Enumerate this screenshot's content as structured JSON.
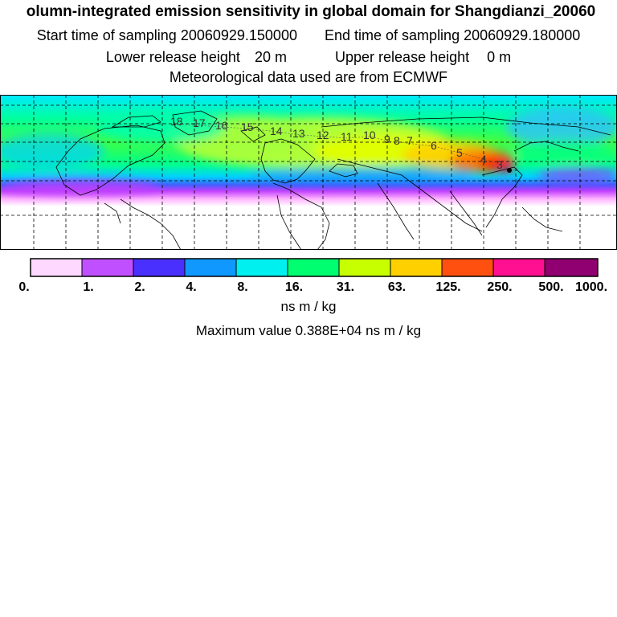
{
  "title": "olumn-integrated emission sensitivity in global domain for Shangdianzi_20060",
  "sampling": {
    "start_label": "Start time of sampling",
    "start_value": "20060929.150000",
    "end_label": "End time of sampling",
    "end_value": "20060929.180000"
  },
  "release": {
    "lower_label": "Lower release height",
    "lower_value": "20 m",
    "upper_label": "Upper release height",
    "upper_value": "0 m"
  },
  "met_data": "Meteorological data used are from ECMWF",
  "map": {
    "trajectory_labels": [
      "18",
      "17",
      "16",
      "15",
      "14",
      "13",
      "12",
      "11",
      "10",
      "9",
      "8",
      "7",
      "6",
      "5",
      "4",
      "3"
    ]
  },
  "colorbar": {
    "tick_labels": [
      "0.",
      "1.",
      "2.",
      "4.",
      "8.",
      "16.",
      "31.",
      "63.",
      "125.",
      "250.",
      "500.",
      "1000."
    ],
    "units": "ns m / kg"
  },
  "max_label": "Maximum value",
  "max_value": "0.388E+04",
  "max_units": "ns m / kg",
  "colors": {
    "c0": "#ffffff",
    "c1": "#ff80ff",
    "c2": "#a020f0",
    "c3": "#3030ff",
    "c4": "#00a0ff",
    "c5": "#00ffff",
    "c6": "#00ff80",
    "c7": "#c0ff00",
    "c8": "#ffd700",
    "c9": "#ff4000",
    "c10": "#ff1493",
    "c11": "#4b0040"
  }
}
